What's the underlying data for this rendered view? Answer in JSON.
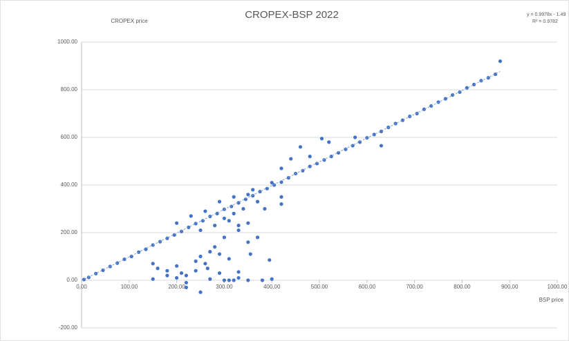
{
  "chart_data": {
    "type": "scatter",
    "title": "CROPEX-BSP 2022",
    "y_label": "CROPEX price",
    "x_label": "BSP price",
    "annotations": [
      "y = 0.9978x - 1.49",
      "R² = 0.9782"
    ],
    "color": "#4472c4",
    "grid": true,
    "xlim": [
      0,
      1000
    ],
    "ylim": [
      -200,
      1000
    ],
    "xticks": [
      {
        "value": 0,
        "label": "0.00"
      },
      {
        "value": 100,
        "label": "100.00"
      },
      {
        "value": 200,
        "label": "200.00"
      },
      {
        "value": 300,
        "label": "300.00"
      },
      {
        "value": 400,
        "label": "400.00"
      },
      {
        "value": 500,
        "label": "500.00"
      },
      {
        "value": 600,
        "label": "600.00"
      },
      {
        "value": 700,
        "label": "700.00"
      },
      {
        "value": 800,
        "label": "800.00"
      },
      {
        "value": 900,
        "label": "900.00"
      },
      {
        "value": 1000,
        "label": "1000.00"
      }
    ],
    "yticks": [
      {
        "value": -200,
        "label": "-200.00"
      },
      {
        "value": 0,
        "label": "0.00"
      },
      {
        "value": 200,
        "label": "200.00"
      },
      {
        "value": 400,
        "label": "400.00"
      },
      {
        "value": 600,
        "label": "600.00"
      },
      {
        "value": 800,
        "label": "800.00"
      },
      {
        "value": 1000,
        "label": "1000.00"
      }
    ],
    "trendline": {
      "x": [
        0,
        880
      ],
      "values": [
        -1.49,
        876.6
      ]
    },
    "x": [
      5,
      15,
      30,
      45,
      60,
      75,
      90,
      105,
      120,
      135,
      150,
      165,
      180,
      195,
      210,
      225,
      240,
      255,
      270,
      285,
      300,
      315,
      330,
      345,
      360,
      375,
      390,
      405,
      420,
      435,
      450,
      465,
      480,
      495,
      510,
      525,
      540,
      555,
      570,
      585,
      600,
      615,
      630,
      645,
      660,
      675,
      690,
      705,
      720,
      735,
      750,
      765,
      780,
      795,
      810,
      825,
      840,
      855,
      870,
      880,
      200,
      230,
      260,
      290,
      320,
      350,
      250,
      280,
      300,
      320,
      340,
      370,
      420,
      440,
      460,
      480,
      520,
      575,
      630,
      505,
      400,
      420,
      420,
      385,
      360,
      310,
      330,
      330,
      350,
      150,
      160,
      180,
      200,
      210,
      220,
      240,
      250,
      260,
      270,
      280,
      290,
      300,
      310,
      320,
      330,
      350,
      355,
      370,
      395,
      150,
      200,
      220,
      250,
      270,
      300,
      310,
      330,
      350,
      380,
      400,
      240,
      290,
      220,
      265,
      180
    ],
    "values": [
      3,
      12,
      28,
      42,
      58,
      72,
      88,
      100,
      118,
      130,
      148,
      162,
      176,
      190,
      205,
      222,
      238,
      250,
      268,
      280,
      298,
      310,
      325,
      340,
      355,
      372,
      385,
      400,
      412,
      430,
      448,
      460,
      478,
      490,
      505,
      520,
      535,
      550,
      565,
      580,
      598,
      612,
      625,
      642,
      658,
      672,
      688,
      700,
      718,
      732,
      748,
      762,
      778,
      790,
      808,
      822,
      838,
      850,
      865,
      920,
      240,
      270,
      290,
      330,
      350,
      360,
      210,
      230,
      260,
      280,
      300,
      330,
      470,
      510,
      560,
      520,
      580,
      600,
      565,
      595,
      410,
      320,
      350,
      300,
      380,
      250,
      210,
      230,
      240,
      70,
      50,
      40,
      60,
      30,
      20,
      80,
      100,
      70,
      120,
      140,
      110,
      180,
      90,
      0,
      10,
      160,
      110,
      180,
      85,
      5,
      10,
      -10,
      -50,
      5,
      0,
      0,
      35,
      0,
      0,
      5,
      40,
      30,
      -30,
      50,
      20
    ]
  }
}
